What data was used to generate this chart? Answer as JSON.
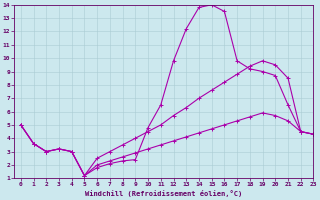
{
  "xlabel": "Windchill (Refroidissement éolien,°C)",
  "background_color": "#cce8ee",
  "line_color": "#aa00aa",
  "xlim": [
    -0.5,
    23
  ],
  "ylim": [
    1,
    14
  ],
  "xticks": [
    0,
    1,
    2,
    3,
    4,
    5,
    6,
    7,
    8,
    9,
    10,
    11,
    12,
    13,
    14,
    15,
    16,
    17,
    18,
    19,
    20,
    21,
    22,
    23
  ],
  "yticks": [
    1,
    2,
    3,
    4,
    5,
    6,
    7,
    8,
    9,
    10,
    11,
    12,
    13,
    14
  ],
  "series1_x": [
    0,
    1,
    2,
    3,
    4,
    5,
    6,
    7,
    8,
    9,
    10,
    11,
    12,
    13,
    14,
    15,
    16,
    17,
    18,
    19,
    20,
    21,
    22,
    23
  ],
  "series1_y": [
    5.0,
    3.6,
    3.0,
    3.2,
    3.0,
    1.2,
    1.8,
    2.1,
    2.3,
    2.4,
    4.8,
    6.5,
    9.8,
    12.2,
    13.8,
    14.0,
    13.5,
    9.8,
    9.2,
    9.0,
    8.7,
    6.5,
    4.5,
    4.3
  ],
  "series2_x": [
    0,
    1,
    2,
    3,
    4,
    5,
    6,
    7,
    8,
    9,
    10,
    11,
    12,
    13,
    14,
    15,
    16,
    17,
    18,
    19,
    20,
    21,
    22,
    23
  ],
  "series2_y": [
    5.0,
    3.6,
    3.0,
    3.2,
    3.0,
    1.2,
    2.5,
    3.0,
    3.5,
    4.0,
    4.5,
    5.0,
    5.7,
    6.3,
    7.0,
    7.6,
    8.2,
    8.8,
    9.4,
    9.8,
    9.5,
    8.5,
    4.5,
    4.3
  ],
  "series3_x": [
    0,
    1,
    2,
    3,
    4,
    5,
    6,
    7,
    8,
    9,
    10,
    11,
    12,
    13,
    14,
    15,
    16,
    17,
    18,
    19,
    20,
    21,
    22,
    23
  ],
  "series3_y": [
    5.0,
    3.6,
    3.0,
    3.2,
    3.0,
    1.2,
    2.0,
    2.3,
    2.6,
    2.9,
    3.2,
    3.5,
    3.8,
    4.1,
    4.4,
    4.7,
    5.0,
    5.3,
    5.6,
    5.9,
    5.7,
    5.3,
    4.5,
    4.3
  ]
}
